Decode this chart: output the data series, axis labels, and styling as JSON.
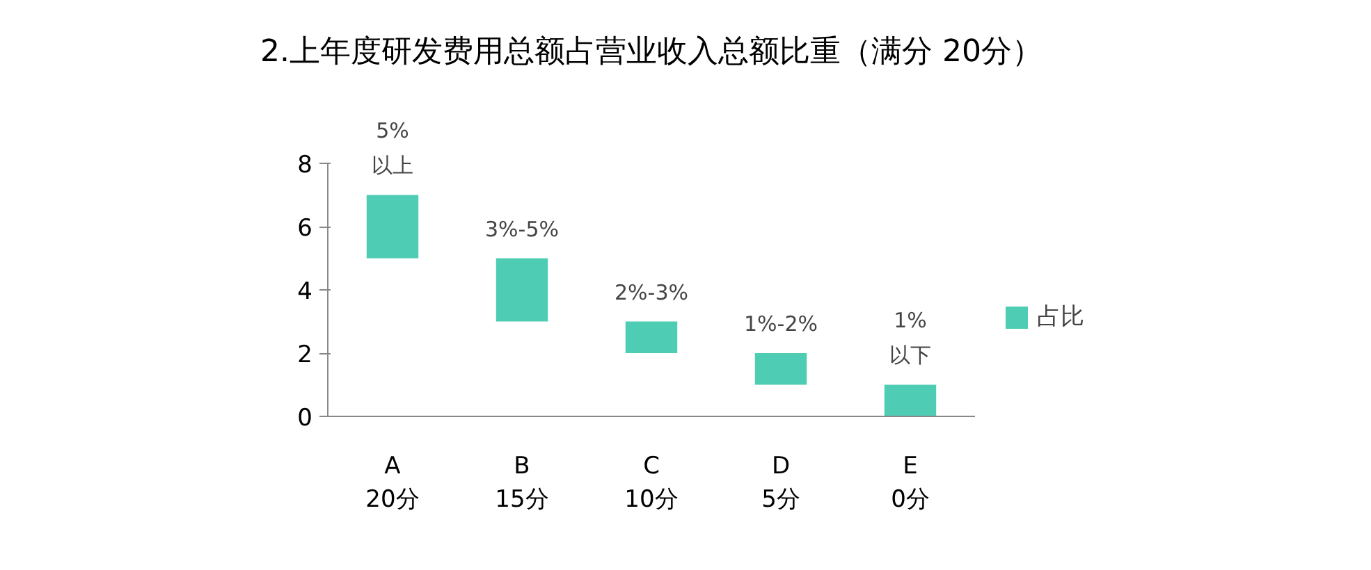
{
  "chart_data": {
    "type": "bar",
    "title": "2.上年度研发费用总额占营业收入总额比重（满分 20分）",
    "categories": [
      "A\n20分",
      "B\n15分",
      "C\n10分",
      "D\n5分",
      "E\n0分"
    ],
    "series": [
      {
        "name": "占比",
        "color": "#4ecdb4",
        "values": [
          2,
          2,
          1,
          1,
          1
        ],
        "base": [
          5,
          3,
          2,
          1,
          0
        ]
      }
    ],
    "annotations": [
      {
        "text": "5%\n以上",
        "x": "A\n20分",
        "y": 7
      },
      {
        "text": "3%-5%",
        "x": "B\n15分",
        "y": 5
      },
      {
        "text": "2%-3%",
        "x": "C\n10分",
        "y": 3
      },
      {
        "text": "1%-2%",
        "x": "D\n5分",
        "y": 2
      },
      {
        "text": "1%\n以下",
        "x": "E\n0分",
        "y": 1
      }
    ],
    "ylim": [
      0,
      8
    ],
    "yticks": [
      0,
      2,
      4,
      6,
      8
    ],
    "grid": false,
    "legend": "right"
  }
}
